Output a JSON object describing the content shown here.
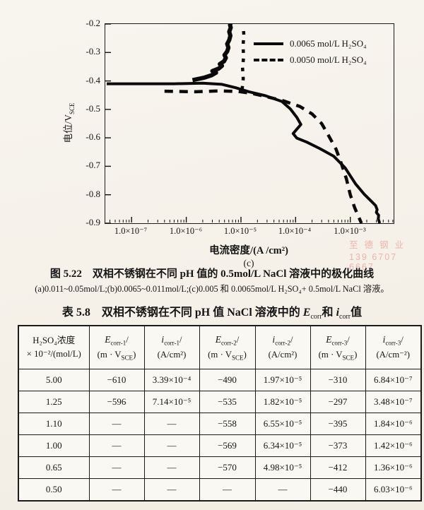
{
  "watermark": {
    "line1": "至德钢业",
    "line2": "139 6707 6667",
    "color": "#e4827a"
  },
  "chart_data": {
    "type": "line",
    "title": "",
    "x_scale": "log",
    "xlabel": "电流密度/(A /cm²)",
    "ylabel": "电位/V_SCE",
    "ylabel_parts": [
      "电位/V",
      "SCE"
    ],
    "panel_label": "(c)",
    "xlim": [
      3.3e-08,
      0.0062
    ],
    "ylim": [
      -0.9,
      -0.2
    ],
    "grid": false,
    "legend_position": "top-right",
    "x_ticks": [
      {
        "label": "1.0×10⁻⁷",
        "value": 1e-07
      },
      {
        "label": "1.0×10⁻⁶",
        "value": 1e-06
      },
      {
        "label": "1.0×10⁻⁵",
        "value": 1e-05
      },
      {
        "label": "1.0×10⁻⁴",
        "value": 0.0001
      },
      {
        "label": "1.0×10⁻³",
        "value": 0.001
      }
    ],
    "y_ticks": [
      {
        "label": "-0.2",
        "value": -0.2
      },
      {
        "label": "-0.3",
        "value": -0.3
      },
      {
        "label": "-0.4",
        "value": -0.4
      },
      {
        "label": "-0.5",
        "value": -0.5
      },
      {
        "label": "-0.6",
        "value": -0.6
      },
      {
        "label": "-0.7",
        "value": -0.7
      },
      {
        "label": "-0.8",
        "value": -0.8
      },
      {
        "label": "-0.9",
        "value": -0.9
      }
    ],
    "legend": [
      {
        "label": "0.0065 mol/L H₂SO₄",
        "line": "solid"
      },
      {
        "label": "0.0050 mol/L H₂SO₄",
        "line": "dashed"
      }
    ],
    "series": [
      {
        "name": "0.0065 mol/L H₂SO₄",
        "line": "solid",
        "width": 4,
        "points": [
          [
            3.5e-08,
            -0.41
          ],
          [
            6e-07,
            -0.41
          ],
          [
            2e-06,
            -0.408
          ],
          [
            4.5e-06,
            -0.412
          ],
          [
            8e-06,
            -0.424
          ],
          [
            1.4e-05,
            -0.438
          ],
          [
            2.8e-05,
            -0.452
          ],
          [
            5.6e-05,
            -0.472
          ],
          [
            8e-05,
            -0.498
          ],
          [
            0.000105,
            -0.528
          ],
          [
            0.000125,
            -0.553
          ],
          [
            9e-05,
            -0.585
          ],
          [
            0.000105,
            -0.601
          ],
          [
            0.00016,
            -0.615
          ],
          [
            0.00028,
            -0.638
          ],
          [
            0.0005,
            -0.665
          ],
          [
            0.0008,
            -0.705
          ],
          [
            0.00125,
            -0.762
          ],
          [
            0.0018,
            -0.798
          ],
          [
            0.0024,
            -0.822
          ],
          [
            0.0029,
            -0.838
          ],
          [
            0.0031,
            -0.852
          ],
          [
            0.003,
            -0.862
          ],
          [
            0.0033,
            -0.872
          ],
          [
            0.00325,
            -0.885
          ],
          [
            0.00345,
            -0.9
          ]
        ]
      },
      {
        "name": "0.0065 mol/L H₂SO₄ (anodic branch)",
        "line": "solid",
        "width": 6,
        "points": [
          [
            1.3e-06,
            -0.397
          ],
          [
            2.1e-06,
            -0.389
          ],
          [
            2.9e-06,
            -0.38
          ],
          [
            3.5e-06,
            -0.371
          ],
          [
            3e-06,
            -0.365
          ],
          [
            3.9e-06,
            -0.357
          ],
          [
            4.5e-06,
            -0.347
          ],
          [
            4.1e-06,
            -0.341
          ],
          [
            4.9e-06,
            -0.331
          ],
          [
            5.3e-06,
            -0.319
          ],
          [
            5e-06,
            -0.309
          ],
          [
            5.6e-06,
            -0.296
          ],
          [
            5.9e-06,
            -0.283
          ],
          [
            5.6e-06,
            -0.27
          ],
          [
            6.1e-06,
            -0.256
          ],
          [
            6.4e-06,
            -0.241
          ],
          [
            6.1e-06,
            -0.227
          ],
          [
            6.5e-06,
            -0.213
          ],
          [
            6.3e-06,
            -0.203
          ],
          [
            6.6e-06,
            -0.193
          ]
        ]
      },
      {
        "name": "0.0050 mol/L H₂SO₄",
        "line": "dashed",
        "width": 4.5,
        "dash": "12 9",
        "points": [
          [
            4e-07,
            -0.436
          ],
          [
            1.5e-06,
            -0.438
          ],
          [
            4e-06,
            -0.435
          ],
          [
            9e-06,
            -0.437
          ],
          [
            1.6e-05,
            -0.444
          ],
          [
            3e-05,
            -0.456
          ],
          [
            6e-05,
            -0.47
          ],
          [
            0.00012,
            -0.49
          ],
          [
            0.0002,
            -0.516
          ],
          [
            0.0003,
            -0.55
          ],
          [
            0.0004,
            -0.592
          ],
          [
            0.00055,
            -0.64
          ],
          [
            0.0007,
            -0.695
          ],
          [
            0.00085,
            -0.744
          ],
          [
            0.001,
            -0.8
          ],
          [
            0.0012,
            -0.845
          ],
          [
            0.0014,
            -0.875
          ],
          [
            0.0016,
            -0.9
          ]
        ]
      },
      {
        "name": "0.0050 mol/L H₂SO₄ (anodic branch)",
        "line": "dashed",
        "width": 4.5,
        "dash": "5 8",
        "points": [
          [
            1.05e-05,
            -0.43
          ],
          [
            1.1e-05,
            -0.392
          ],
          [
            1.07e-05,
            -0.353
          ],
          [
            1.12e-05,
            -0.315
          ],
          [
            1.09e-05,
            -0.277
          ],
          [
            1.13e-05,
            -0.24
          ],
          [
            1.1e-05,
            -0.207
          ]
        ]
      }
    ]
  },
  "caption": {
    "line1": "图 5.22　双相不锈钢在不同 pH 值的 0.5mol/L NaCl 溶液中的极化曲线",
    "line2": "(a)0.011~0.05mol/L;(b)0.0065~0.011mol/L;(c)0.005 和 0.0065mol/L H₂SO₄+ 0.5mol/L NaCl 溶液。"
  },
  "table": {
    "title": {
      "pre": "表 5.8　双相不锈钢在不同 pH 值 NaCl 溶液中的 ",
      "sym1": "E",
      "sub1": "corr",
      "mid": "和 ",
      "sym2": "i",
      "sub2": "corr",
      "post": "值"
    },
    "columns": [
      {
        "line1": "H₂SO₄浓度",
        "line2": "× 10⁻²/(mol/L)"
      },
      {
        "sym": "E",
        "sub": "corr-1",
        "slash": "/",
        "unit_pre": "(m · V",
        "unit_sub": "SCE",
        "unit_post": ")"
      },
      {
        "sym": "i",
        "sub": "corr-1",
        "slash": "/",
        "unit_pre": "(A/cm²",
        "unit_sub": "",
        "unit_post": ")"
      },
      {
        "sym": "E",
        "sub": "corr-2",
        "slash": "/",
        "unit_pre": "(m · V",
        "unit_sub": "SCE",
        "unit_post": ")"
      },
      {
        "sym": "i",
        "sub": "corr-2",
        "slash": "/",
        "unit_pre": "(A/cm²",
        "unit_sub": "",
        "unit_post": ")"
      },
      {
        "sym": "E",
        "sub": "corr-3",
        "slash": "/",
        "unit_pre": "(m · V",
        "unit_sub": "SCE",
        "unit_post": ")"
      },
      {
        "sym": "i",
        "sub": "corr-3",
        "slash": "/",
        "unit_pre": "(A/cm⁻²",
        "unit_sub": "",
        "unit_post": ")"
      }
    ],
    "rows": [
      [
        "5.00",
        "−610",
        "3.39×10⁻⁴",
        "−490",
        "1.97×10⁻⁵",
        "−310",
        "6.84×10⁻⁷"
      ],
      [
        "1.25",
        "−596",
        "7.14×10⁻⁵",
        "−535",
        "1.82×10⁻⁵",
        "−297",
        "3.48×10⁻⁷"
      ],
      [
        "1.10",
        "—",
        "—",
        "−558",
        "6.55×10⁻⁵",
        "−395",
        "1.84×10⁻⁶"
      ],
      [
        "1.00",
        "—",
        "—",
        "−569",
        "6.34×10⁻⁵",
        "−373",
        "1.42×10⁻⁶"
      ],
      [
        "0.65",
        "—",
        "—",
        "−570",
        "4.98×10⁻⁵",
        "−412",
        "1.36×10⁻⁶"
      ],
      [
        "0.50",
        "—",
        "—",
        "—",
        "—",
        "−440",
        "6.03×10⁻⁶"
      ]
    ]
  }
}
